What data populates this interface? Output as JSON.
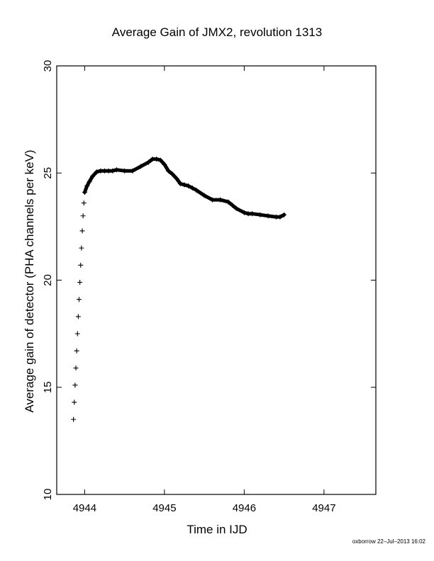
{
  "chart_data": {
    "type": "scatter",
    "title": "Average Gain of JMX2, revolution 1313",
    "xlabel": "Time in IJD",
    "ylabel": "Average gain of detector (PHA channels per keV)",
    "xlim": [
      4943.65,
      4947.65
    ],
    "ylim": [
      10,
      30
    ],
    "xticks": [
      4944,
      4945,
      4946,
      4947
    ],
    "yticks": [
      10,
      15,
      20,
      25,
      30
    ],
    "marker": "+",
    "grid": false,
    "series": [
      {
        "x": [
          4943.86,
          4943.87,
          4943.88,
          4943.89,
          4943.9,
          4943.91,
          4943.92,
          4943.93,
          4943.94,
          4943.95,
          4943.96,
          4943.97,
          4943.98,
          4943.99,
          4944.0,
          4944.03,
          4944.06,
          4944.1,
          4944.15,
          4944.2,
          4944.25,
          4944.3,
          4944.35,
          4944.4,
          4944.5,
          4944.6,
          4944.7,
          4944.8,
          4944.85,
          4944.9,
          4944.95,
          4945.0,
          4945.05,
          4945.1,
          4945.15,
          4945.2,
          4945.25,
          4945.3,
          4945.35,
          4945.4,
          4945.5,
          4945.6,
          4945.7,
          4945.8,
          4945.85,
          4945.9,
          4946.0,
          4946.05,
          4946.1,
          4946.2,
          4946.3,
          4946.4,
          4946.45,
          4946.5
        ],
        "y": [
          13.5,
          14.3,
          15.1,
          15.9,
          16.7,
          17.5,
          18.3,
          19.1,
          19.9,
          20.7,
          21.5,
          22.3,
          23.0,
          23.6,
          24.1,
          24.4,
          24.6,
          24.85,
          25.05,
          25.1,
          25.1,
          25.1,
          25.1,
          25.15,
          25.1,
          25.1,
          25.3,
          25.5,
          25.65,
          25.65,
          25.6,
          25.4,
          25.1,
          24.95,
          24.75,
          24.5,
          24.45,
          24.4,
          24.3,
          24.2,
          23.95,
          23.75,
          23.75,
          23.65,
          23.5,
          23.35,
          23.15,
          23.1,
          23.1,
          23.05,
          23.0,
          22.95,
          22.95,
          23.05
        ]
      }
    ]
  },
  "footer": "oxborrow 22–Jul–2013 16:02"
}
